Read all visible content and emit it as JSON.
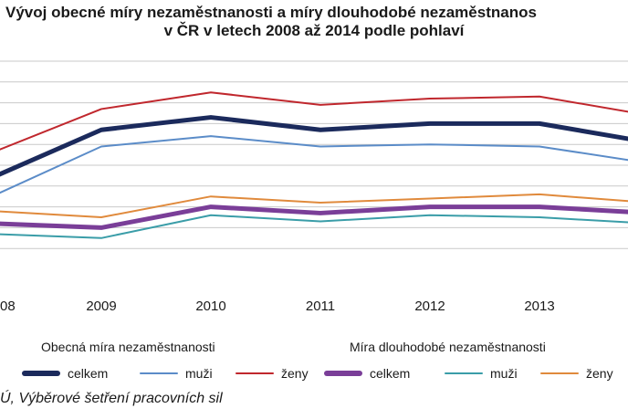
{
  "title_line1": "Vývoj obecné míry nezaměstnanosti a  míry dlouhodobé  nezaměstnanos",
  "title_line2": "v ČR v letech 2008 až 2014 podle pohlaví",
  "legend": {
    "group1": "Obecná míra nezaměstnanosti",
    "group2": "Míra dlouhodobé nezaměstnanosti",
    "items": [
      {
        "label": "celkem",
        "color": "#1b2a5c"
      },
      {
        "label": "muži",
        "color": "#5b8cc8"
      },
      {
        "label": "ženy",
        "color": "#c0272d"
      },
      {
        "label": "celkem",
        "color": "#7a3e98"
      },
      {
        "label": "muži",
        "color": "#3a9da8"
      },
      {
        "label": "ženy",
        "color": "#e08a3c"
      }
    ]
  },
  "source": "Ú, Výběrové šetření pracovních sil",
  "chart_data": {
    "type": "line",
    "x_tick_labels": [
      "08",
      "2009",
      "2010",
      "2011",
      "2012",
      "2013"
    ],
    "x": [
      2008,
      2009,
      2010,
      2011,
      2012,
      2013,
      2014
    ],
    "grid": true,
    "series": [
      {
        "group": "Obecná míra nezaměstnanosti",
        "name": "celkem",
        "color": "#1b2a5c",
        "values": [
          4.4,
          6.7,
          7.3,
          6.7,
          7.0,
          7.0,
          6.1
        ]
      },
      {
        "group": "Obecná míra nezaměstnanosti",
        "name": "muži",
        "color": "#5b8cc8",
        "values": [
          3.5,
          5.9,
          6.4,
          5.9,
          6.0,
          5.9,
          5.1
        ]
      },
      {
        "group": "Obecná míra nezaměstnanosti",
        "name": "ženy",
        "color": "#c0272d",
        "values": [
          5.6,
          7.7,
          8.5,
          7.9,
          8.2,
          8.3,
          7.4
        ]
      },
      {
        "group": "Míra dlouhodobé nezaměstnanosti",
        "name": "celkem",
        "color": "#7a3e98",
        "values": [
          2.2,
          2.0,
          3.0,
          2.7,
          3.0,
          3.0,
          2.7
        ]
      },
      {
        "group": "Míra dlouhodobé nezaměstnanosti",
        "name": "muži",
        "color": "#3a9da8",
        "values": [
          1.7,
          1.5,
          2.6,
          2.3,
          2.6,
          2.5,
          2.2
        ]
      },
      {
        "group": "Míra dlouhodobé nezaměstnanosti",
        "name": "ženy",
        "color": "#e08a3c",
        "values": [
          2.8,
          2.5,
          3.5,
          3.2,
          3.4,
          3.6,
          3.2
        ]
      }
    ]
  }
}
